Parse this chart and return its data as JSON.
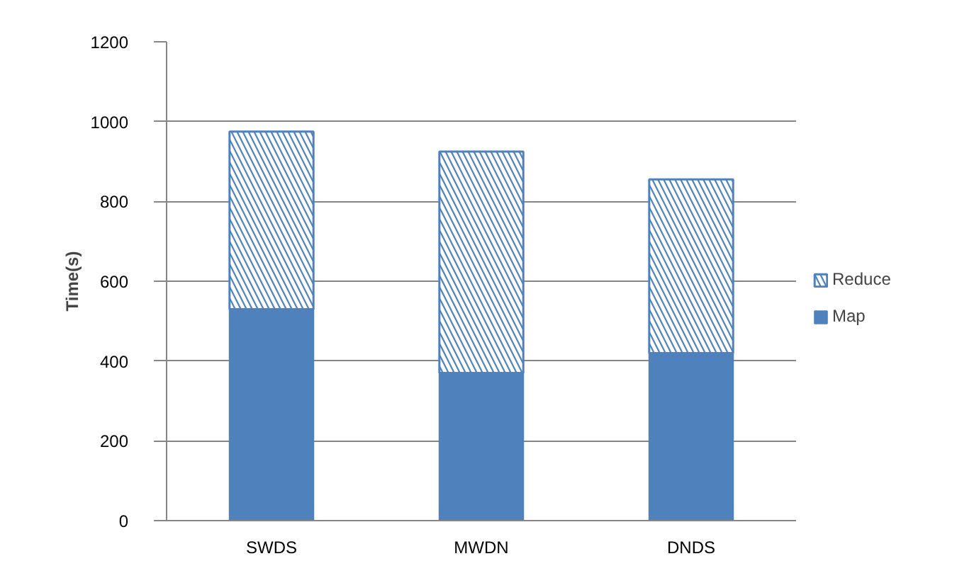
{
  "chart_data": {
    "type": "bar",
    "stacked": true,
    "ylabel": "Time(s)",
    "categories": [
      "SWDS",
      "MWDN",
      "DNDS"
    ],
    "series": [
      {
        "name": "Map",
        "color": "#4f81bd",
        "values": [
          530,
          370,
          420
        ]
      },
      {
        "name": "Reduce",
        "color": "#4f81bd",
        "values": [
          445,
          555,
          435
        ]
      }
    ],
    "ylim": [
      0,
      1200
    ],
    "yticks": [
      0,
      200,
      400,
      600,
      800,
      1000,
      1200
    ],
    "grid": "y",
    "legend": "right"
  }
}
